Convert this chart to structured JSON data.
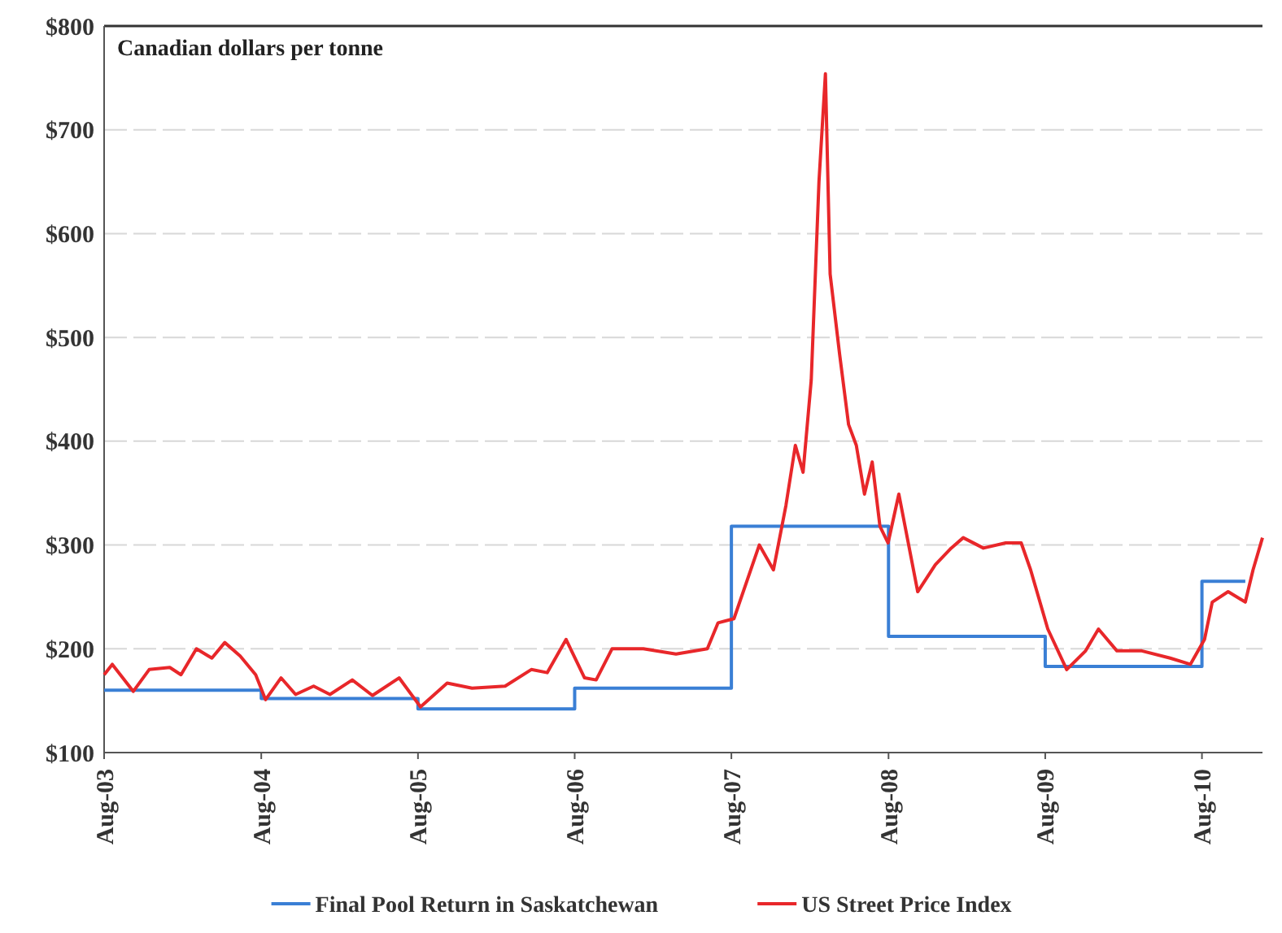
{
  "chart_data": {
    "type": "line",
    "ylabel": "Canadian dollars per tonne",
    "xlim": [
      "2003-08-01",
      "2010-12-20"
    ],
    "ylim": [
      100,
      800
    ],
    "xticks": [
      {
        "value": "2003-08-01",
        "label": "Aug-03"
      },
      {
        "value": "2004-08-01",
        "label": "Aug-04"
      },
      {
        "value": "2005-08-01",
        "label": "Aug-05"
      },
      {
        "value": "2006-08-01",
        "label": "Aug-06"
      },
      {
        "value": "2007-08-01",
        "label": "Aug-07"
      },
      {
        "value": "2008-08-01",
        "label": "Aug-08"
      },
      {
        "value": "2009-08-01",
        "label": "Aug-09"
      },
      {
        "value": "2010-08-01",
        "label": "Aug-10"
      }
    ],
    "yticks": [
      {
        "value": 100,
        "label": "$100"
      },
      {
        "value": 200,
        "label": "$200"
      },
      {
        "value": 300,
        "label": "$300"
      },
      {
        "value": 400,
        "label": "$400"
      },
      {
        "value": 500,
        "label": "$500"
      },
      {
        "value": 600,
        "label": "$600"
      },
      {
        "value": 700,
        "label": "$700"
      },
      {
        "value": 800,
        "label": "$800"
      }
    ],
    "grid": "y",
    "legend": "bottom",
    "line_style": "solid",
    "series": [
      {
        "name": "Final Pool Return in Saskatchewan",
        "type": "step",
        "color": "#3a7fd5",
        "x": [
          "2003-08-01",
          "2004-08-01",
          "2005-08-01",
          "2006-08-01",
          "2007-08-01",
          "2008-08-01",
          "2009-08-01",
          "2010-08-01",
          "2010-11-10"
        ],
        "values": [
          160,
          152,
          142,
          162,
          318,
          212,
          183,
          265,
          265
        ]
      },
      {
        "name": "US Street Price Index",
        "type": "line",
        "color": "#e8272a",
        "x": [
          "2003-08-01",
          "2003-08-20",
          "2003-10-08",
          "2003-11-14",
          "2004-01-01",
          "2004-01-27",
          "2004-03-03",
          "2004-04-08",
          "2004-05-08",
          "2004-06-13",
          "2004-07-19",
          "2004-08-11",
          "2004-09-16",
          "2004-10-20",
          "2004-12-01",
          "2005-01-08",
          "2005-03-01",
          "2005-04-17",
          "2005-06-18",
          "2005-08-07",
          "2005-10-08",
          "2005-12-05",
          "2006-02-20",
          "2006-04-22",
          "2006-05-29",
          "2006-07-12",
          "2006-08-24",
          "2006-09-20",
          "2006-10-27",
          "2007-01-08",
          "2007-03-25",
          "2007-06-06",
          "2007-07-01",
          "2007-08-07",
          "2007-10-05",
          "2007-11-07",
          "2007-12-06",
          "2007-12-28",
          "2008-01-15",
          "2008-02-03",
          "2008-02-21",
          "2008-03-07",
          "2008-03-18",
          "2008-04-09",
          "2008-04-30",
          "2008-05-18",
          "2008-06-06",
          "2008-06-24",
          "2008-07-12",
          "2008-07-31",
          "2008-08-25",
          "2008-10-08",
          "2008-11-18",
          "2008-12-25",
          "2009-01-22",
          "2009-03-10",
          "2009-05-01",
          "2009-06-06",
          "2009-06-28",
          "2009-08-07",
          "2009-09-20",
          "2009-11-03",
          "2009-12-03",
          "2010-01-15",
          "2010-03-14",
          "2010-05-19",
          "2010-07-05",
          "2010-08-07",
          "2010-08-25",
          "2010-10-01",
          "2010-11-10",
          "2010-11-28",
          "2010-12-20"
        ],
        "values": [
          175,
          185,
          159,
          180,
          182,
          175,
          200,
          191,
          206,
          193,
          175,
          151,
          172,
          156,
          164,
          156,
          170,
          155,
          172,
          144,
          167,
          162,
          164,
          180,
          177,
          209,
          172,
          170,
          200,
          200,
          195,
          200,
          225,
          229,
          300,
          276,
          338,
          396,
          370,
          459,
          650,
          754,
          561,
          484,
          416,
          396,
          349,
          380,
          318,
          302,
          349,
          255,
          281,
          297,
          307,
          297,
          302,
          302,
          276,
          219,
          180,
          198,
          219,
          198,
          198,
          191,
          185,
          209,
          245,
          255,
          245,
          276,
          307
        ]
      }
    ]
  }
}
